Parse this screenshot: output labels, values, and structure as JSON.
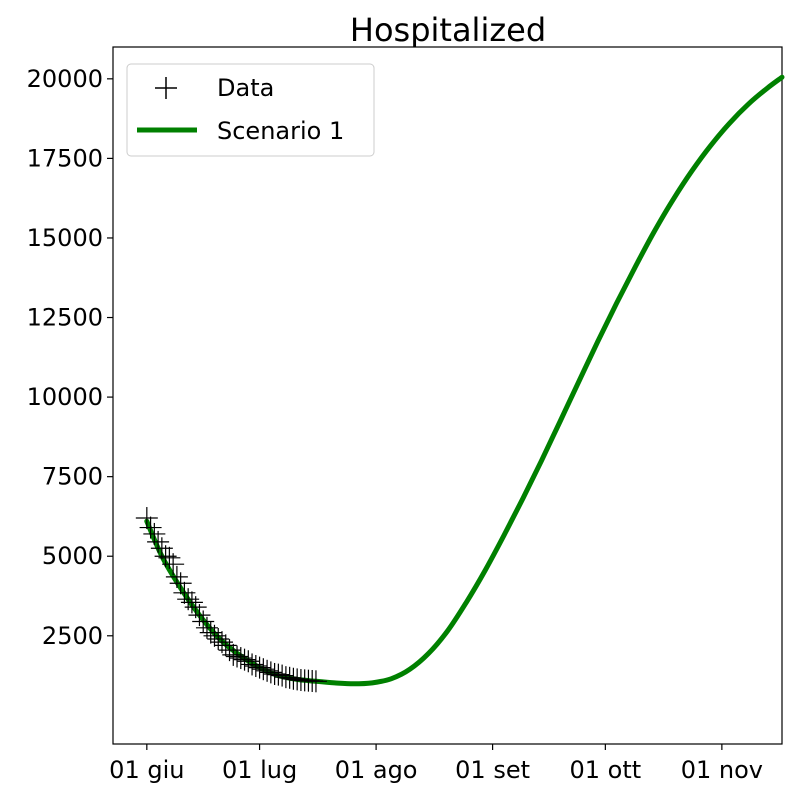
{
  "chart_data": {
    "type": "line",
    "title": "Hospitalized",
    "xlabel": "",
    "ylabel": "",
    "x_axis": {
      "type": "date",
      "range": [
        "2020-05-23",
        "2020-11-17"
      ],
      "ticks": [
        {
          "date": "2020-06-01",
          "label": "01 giu"
        },
        {
          "date": "2020-07-01",
          "label": "01 lug"
        },
        {
          "date": "2020-08-01",
          "label": "01 ago"
        },
        {
          "date": "2020-09-01",
          "label": "01 set"
        },
        {
          "date": "2020-10-01",
          "label": "01 ott"
        },
        {
          "date": "2020-11-01",
          "label": "01 nov"
        }
      ]
    },
    "y_axis": {
      "range": [
        -900,
        21000
      ],
      "ticks": [
        2500,
        5000,
        7500,
        10000,
        12500,
        15000,
        17500,
        20000
      ]
    },
    "grid": false,
    "legend": {
      "position": "top-left",
      "entries": [
        "Data",
        "Scenario 1"
      ]
    },
    "series": [
      {
        "name": "Data",
        "style": "marker-plus",
        "color": "#000000",
        "points": [
          [
            "2020-06-01",
            6200
          ],
          [
            "2020-06-02",
            5900
          ],
          [
            "2020-06-03",
            5700
          ],
          [
            "2020-06-04",
            5450
          ],
          [
            "2020-06-05",
            5250
          ],
          [
            "2020-06-06",
            5000
          ],
          [
            "2020-06-07",
            4950
          ],
          [
            "2020-06-08",
            4750
          ],
          [
            "2020-06-09",
            4350
          ],
          [
            "2020-06-10",
            4150
          ],
          [
            "2020-06-11",
            3850
          ],
          [
            "2020-06-12",
            3650
          ],
          [
            "2020-06-13",
            3550
          ],
          [
            "2020-06-14",
            3400
          ],
          [
            "2020-06-15",
            3150
          ],
          [
            "2020-06-16",
            2950
          ],
          [
            "2020-06-17",
            2750
          ],
          [
            "2020-06-18",
            2600
          ],
          [
            "2020-06-19",
            2500
          ],
          [
            "2020-06-20",
            2400
          ],
          [
            "2020-06-21",
            2300
          ],
          [
            "2020-06-22",
            2200
          ],
          [
            "2020-06-23",
            2050
          ],
          [
            "2020-06-24",
            1900
          ],
          [
            "2020-06-25",
            1850
          ],
          [
            "2020-06-26",
            1800
          ],
          [
            "2020-06-27",
            1750
          ],
          [
            "2020-06-28",
            1700
          ],
          [
            "2020-06-29",
            1600
          ],
          [
            "2020-06-30",
            1550
          ],
          [
            "2020-07-01",
            1500
          ],
          [
            "2020-07-02",
            1450
          ],
          [
            "2020-07-03",
            1400
          ],
          [
            "2020-07-04",
            1350
          ],
          [
            "2020-07-05",
            1300
          ],
          [
            "2020-07-06",
            1280
          ],
          [
            "2020-07-07",
            1250
          ],
          [
            "2020-07-08",
            1200
          ],
          [
            "2020-07-09",
            1180
          ],
          [
            "2020-07-10",
            1150
          ],
          [
            "2020-07-11",
            1130
          ],
          [
            "2020-07-12",
            1110
          ],
          [
            "2020-07-13",
            1100
          ],
          [
            "2020-07-14",
            1090
          ],
          [
            "2020-07-15",
            1080
          ],
          [
            "2020-07-16",
            1070
          ]
        ]
      },
      {
        "name": "Scenario 1",
        "style": "line",
        "color": "#008000",
        "points": [
          [
            "2020-06-01",
            6100
          ],
          [
            "2020-06-05",
            5000
          ],
          [
            "2020-06-10",
            4000
          ],
          [
            "2020-06-15",
            3150
          ],
          [
            "2020-06-20",
            2450
          ],
          [
            "2020-06-25",
            1950
          ],
          [
            "2020-07-01",
            1500
          ],
          [
            "2020-07-06",
            1250
          ],
          [
            "2020-07-11",
            1130
          ],
          [
            "2020-07-16",
            1070
          ],
          [
            "2020-07-21",
            1020
          ],
          [
            "2020-07-26",
            990
          ],
          [
            "2020-07-31",
            1020
          ],
          [
            "2020-08-05",
            1150
          ],
          [
            "2020-08-10",
            1450
          ],
          [
            "2020-08-15",
            1950
          ],
          [
            "2020-08-20",
            2650
          ],
          [
            "2020-08-25",
            3550
          ],
          [
            "2020-08-30",
            4550
          ],
          [
            "2020-09-04",
            5650
          ],
          [
            "2020-09-09",
            6800
          ],
          [
            "2020-09-14",
            8000
          ],
          [
            "2020-09-19",
            9250
          ],
          [
            "2020-09-24",
            10500
          ],
          [
            "2020-09-29",
            11750
          ],
          [
            "2020-10-04",
            12950
          ],
          [
            "2020-10-09",
            14100
          ],
          [
            "2020-10-14",
            15200
          ],
          [
            "2020-10-19",
            16200
          ],
          [
            "2020-10-24",
            17100
          ],
          [
            "2020-10-29",
            17900
          ],
          [
            "2020-11-03",
            18600
          ],
          [
            "2020-11-08",
            19200
          ],
          [
            "2020-11-13",
            19700
          ],
          [
            "2020-11-17",
            20050
          ]
        ]
      }
    ]
  }
}
